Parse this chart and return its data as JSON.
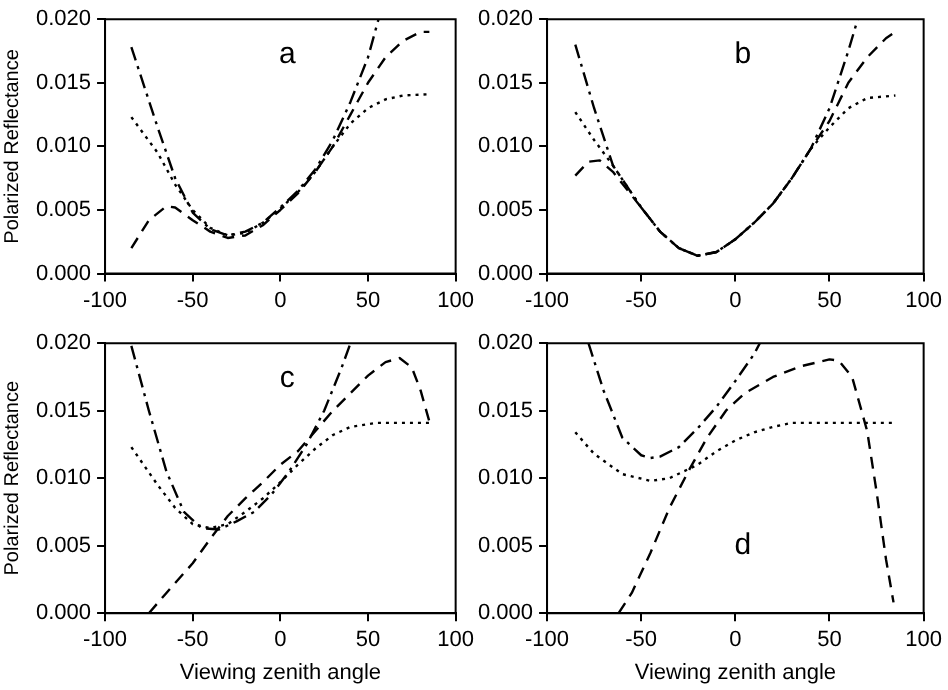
{
  "chart_data": [
    {
      "type": "line",
      "ylabel": "Polarized Reflectance",
      "xlim": [
        -100,
        100
      ],
      "xticks": [
        -100,
        -50,
        0,
        50,
        100
      ],
      "ylim": [
        0,
        0.02
      ],
      "yticks": [
        {
          "value": 0,
          "label": "0.000"
        },
        {
          "value": 0.005,
          "label": "0.005"
        },
        {
          "value": 0.01,
          "label": "0.010"
        },
        {
          "value": 0.015,
          "label": "0.015"
        },
        {
          "value": 0.02,
          "label": "0.020"
        }
      ],
      "grid": false,
      "legend": false,
      "marker": "none",
      "annotations": [
        "a"
      ],
      "series": [
        {
          "color": "#000000",
          "line_style": "dashdot",
          "x": [
            -85,
            -70,
            -60,
            -50,
            -40,
            -30,
            -20,
            -10,
            0,
            10,
            20,
            30,
            40,
            50,
            56
          ],
          "values": [
            0.0178,
            0.0115,
            0.0075,
            0.0048,
            0.0035,
            0.003,
            0.0033,
            0.004,
            0.0052,
            0.0065,
            0.0082,
            0.0105,
            0.0135,
            0.017,
            0.02
          ]
        },
        {
          "color": "#000000",
          "line_style": "dotted",
          "x": [
            -85,
            -70,
            -60,
            -50,
            -40,
            -30,
            -20,
            -10,
            0,
            10,
            20,
            30,
            40,
            50,
            60,
            70,
            85
          ],
          "values": [
            0.0123,
            0.0095,
            0.007,
            0.005,
            0.0036,
            0.003,
            0.0032,
            0.004,
            0.0051,
            0.0064,
            0.008,
            0.01,
            0.0118,
            0.013,
            0.0137,
            0.014,
            0.0141
          ]
        },
        {
          "color": "#000000",
          "line_style": "dashed",
          "x": [
            -85,
            -75,
            -65,
            -60,
            -50,
            -40,
            -30,
            -20,
            -10,
            0,
            10,
            20,
            30,
            40,
            50,
            60,
            70,
            80,
            85
          ],
          "values": [
            0.002,
            0.0042,
            0.0053,
            0.0052,
            0.0042,
            0.0033,
            0.0028,
            0.003,
            0.0038,
            0.005,
            0.0063,
            0.008,
            0.01,
            0.0125,
            0.015,
            0.017,
            0.0183,
            0.019,
            0.019
          ]
        }
      ]
    },
    {
      "type": "line",
      "xlim": [
        -100,
        100
      ],
      "xticks": [
        -100,
        -50,
        0,
        50,
        100
      ],
      "ylim": [
        0,
        0.02
      ],
      "yticks": [
        {
          "value": 0,
          "label": "0.000"
        },
        {
          "value": 0.005,
          "label": "0.005"
        },
        {
          "value": 0.01,
          "label": "0.010"
        },
        {
          "value": 0.015,
          "label": "0.015"
        },
        {
          "value": 0.02,
          "label": "0.020"
        }
      ],
      "grid": false,
      "legend": false,
      "marker": "none",
      "annotations": [
        "b"
      ],
      "series": [
        {
          "color": "#000000",
          "line_style": "dashdot",
          "x": [
            -85,
            -75,
            -65,
            -50,
            -40,
            -30,
            -20,
            -10,
            0,
            10,
            20,
            30,
            40,
            50,
            60,
            65
          ],
          "values": [
            0.018,
            0.013,
            0.0085,
            0.0052,
            0.0033,
            0.002,
            0.0014,
            0.0017,
            0.0027,
            0.004,
            0.0055,
            0.0075,
            0.0098,
            0.013,
            0.0175,
            0.02
          ]
        },
        {
          "color": "#000000",
          "line_style": "dotted",
          "x": [
            -85,
            -75,
            -65,
            -50,
            -40,
            -30,
            -20,
            -10,
            0,
            10,
            20,
            30,
            40,
            50,
            60,
            70,
            85
          ],
          "values": [
            0.0127,
            0.0105,
            0.0085,
            0.0052,
            0.0033,
            0.002,
            0.0014,
            0.0017,
            0.0027,
            0.004,
            0.0055,
            0.0075,
            0.0098,
            0.0115,
            0.013,
            0.0138,
            0.014
          ]
        },
        {
          "color": "#000000",
          "line_style": "dashed",
          "x": [
            -85,
            -78,
            -72,
            -65,
            -50,
            -40,
            -30,
            -20,
            -10,
            0,
            10,
            20,
            30,
            40,
            50,
            60,
            70,
            80,
            85
          ],
          "values": [
            0.0077,
            0.0088,
            0.0089,
            0.008,
            0.0052,
            0.0033,
            0.002,
            0.0014,
            0.0017,
            0.0027,
            0.004,
            0.0055,
            0.0075,
            0.0098,
            0.012,
            0.015,
            0.017,
            0.0185,
            0.019
          ]
        }
      ]
    },
    {
      "type": "line",
      "xlabel": "Viewing zenith angle",
      "ylabel": "Polarized Reflectance",
      "xlim": [
        -100,
        100
      ],
      "xticks": [
        -100,
        -50,
        0,
        50,
        100
      ],
      "ylim": [
        0,
        0.02
      ],
      "yticks": [
        {
          "value": 0,
          "label": "0.000"
        },
        {
          "value": 0.005,
          "label": "0.005"
        },
        {
          "value": 0.01,
          "label": "0.010"
        },
        {
          "value": 0.015,
          "label": "0.015"
        },
        {
          "value": 0.02,
          "label": "0.020"
        }
      ],
      "grid": false,
      "legend": false,
      "marker": "none",
      "annotations": [
        "c"
      ],
      "series": [
        {
          "color": "#000000",
          "line_style": "dashdot",
          "x": [
            -85,
            -75,
            -65,
            -55,
            -45,
            -35,
            -25,
            -15,
            -5,
            5,
            15,
            25,
            35,
            40
          ],
          "values": [
            0.0198,
            0.015,
            0.0105,
            0.0075,
            0.0063,
            0.0062,
            0.0068,
            0.0075,
            0.0088,
            0.0105,
            0.0125,
            0.015,
            0.0182,
            0.02
          ]
        },
        {
          "color": "#000000",
          "line_style": "dotted",
          "x": [
            -85,
            -70,
            -60,
            -50,
            -40,
            -30,
            -20,
            -10,
            0,
            10,
            20,
            30,
            40,
            55,
            85
          ],
          "values": [
            0.0123,
            0.0095,
            0.0078,
            0.0066,
            0.0063,
            0.0066,
            0.0075,
            0.0085,
            0.0097,
            0.011,
            0.0122,
            0.0132,
            0.0138,
            0.0141,
            0.0141
          ]
        },
        {
          "color": "#000000",
          "line_style": "dashed",
          "x": [
            -75,
            -65,
            -50,
            -40,
            -30,
            -20,
            -10,
            0,
            10,
            20,
            30,
            40,
            50,
            60,
            68,
            75,
            80,
            85
          ],
          "values": [
            0,
            0.0015,
            0.0037,
            0.0055,
            0.0072,
            0.0085,
            0.0097,
            0.011,
            0.012,
            0.0135,
            0.015,
            0.0163,
            0.0176,
            0.0186,
            0.0189,
            0.0182,
            0.0165,
            0.0142
          ]
        }
      ]
    },
    {
      "type": "line",
      "xlabel": "Viewing zenith angle",
      "xlim": [
        -100,
        100
      ],
      "xticks": [
        -100,
        -50,
        0,
        50,
        100
      ],
      "ylim": [
        0,
        0.02
      ],
      "yticks": [
        {
          "value": 0,
          "label": "0.000"
        },
        {
          "value": 0.005,
          "label": "0.005"
        },
        {
          "value": 0.01,
          "label": "0.010"
        },
        {
          "value": 0.015,
          "label": "0.015"
        },
        {
          "value": 0.02,
          "label": "0.020"
        }
      ],
      "grid": false,
      "legend": false,
      "marker": "none",
      "annotations": [
        "d"
      ],
      "series": [
        {
          "color": "#000000",
          "line_style": "dashdot",
          "x": [
            -78,
            -70,
            -60,
            -50,
            -45,
            -40,
            -30,
            -20,
            -10,
            0,
            10,
            13
          ],
          "values": [
            0.02,
            0.0165,
            0.013,
            0.0117,
            0.0115,
            0.0116,
            0.0123,
            0.0137,
            0.0153,
            0.0172,
            0.0192,
            0.02
          ]
        },
        {
          "color": "#000000",
          "line_style": "dotted",
          "x": [
            -85,
            -75,
            -60,
            -45,
            -35,
            -20,
            -10,
            0,
            10,
            20,
            30,
            50,
            85
          ],
          "values": [
            0.0134,
            0.0118,
            0.0103,
            0.0098,
            0.01,
            0.011,
            0.012,
            0.0128,
            0.0134,
            0.0138,
            0.0141,
            0.0141,
            0.0141
          ]
        },
        {
          "color": "#000000",
          "line_style": "dashed",
          "x": [
            -62,
            -55,
            -45,
            -35,
            -25,
            -15,
            -5,
            5,
            20,
            35,
            50,
            55,
            62,
            70,
            75,
            80,
            84
          ],
          "values": [
            0,
            0.0015,
            0.0045,
            0.0078,
            0.0105,
            0.013,
            0.015,
            0.0163,
            0.0175,
            0.0183,
            0.0188,
            0.0187,
            0.0175,
            0.0135,
            0.009,
            0.004,
            0.0008
          ]
        }
      ]
    }
  ]
}
